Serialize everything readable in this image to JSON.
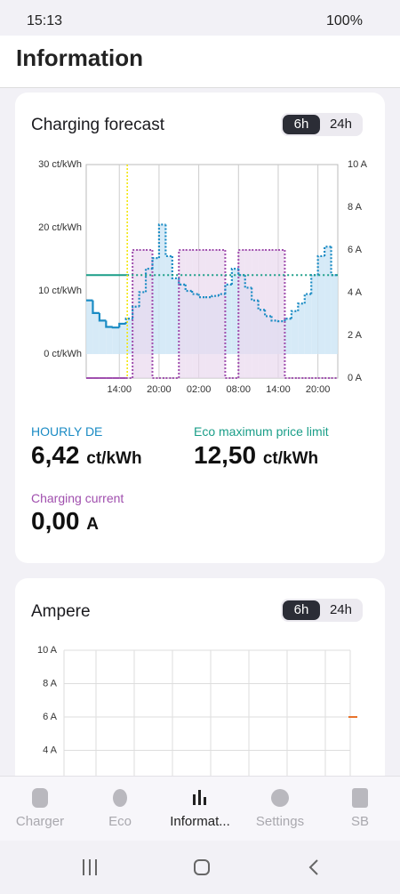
{
  "status_bar": {
    "time": "15:13",
    "battery": "100%"
  },
  "header": {
    "title": "Information"
  },
  "forecast_card": {
    "title": "Charging forecast",
    "toggle": [
      "6h",
      "24h"
    ],
    "chart": {
      "type": "step",
      "xlim": [
        0,
        38
      ],
      "xticks": [
        {
          "value": 5,
          "label": "14:00"
        },
        {
          "value": 11,
          "label": "20:00"
        },
        {
          "value": 17,
          "label": "02:00"
        },
        {
          "value": 23,
          "label": "08:00"
        },
        {
          "value": 29,
          "label": "14:00"
        },
        {
          "value": 35,
          "label": "20:00"
        }
      ],
      "ylim": [
        -3.8,
        30
      ],
      "yticks": [
        {
          "value": 0,
          "label": "0 ct/kWh"
        },
        {
          "value": 10,
          "label": "10 ct/kWh"
        },
        {
          "value": 20,
          "label": "20 ct/kWh"
        },
        {
          "value": 30,
          "label": "30 ct/kWh"
        }
      ],
      "y2lim": [
        0,
        10
      ],
      "y2ticks": [
        {
          "value": 0,
          "label": "0 A"
        },
        {
          "value": 2,
          "label": "2 A"
        },
        {
          "value": 4,
          "label": "4 A"
        },
        {
          "value": 6,
          "label": "6 A"
        },
        {
          "value": 8,
          "label": "8 A"
        },
        {
          "value": 10,
          "label": "10 A"
        }
      ],
      "now": 6.2,
      "price": {
        "color": "#1a8bc4",
        "fill": "#cfe6f6",
        "values": [
          8.5,
          6.5,
          5.3,
          4.3,
          4.2,
          4.8,
          5.6,
          7.5,
          9.8,
          13.5,
          15.2,
          20.5,
          15.5,
          12,
          11,
          10,
          9.5,
          9,
          9,
          9.2,
          9.5,
          11,
          13.5,
          12.5,
          10.5,
          8.5,
          7,
          6,
          5.3,
          5.2,
          5.6,
          6.8,
          8,
          9.5,
          12.5,
          15.5,
          17,
          12.5
        ]
      },
      "limit": {
        "color": "#1a9e88",
        "value": 12.5
      },
      "current": {
        "color": "#a04fae",
        "fill": "#ead8ee",
        "axis": "y2",
        "values": [
          0,
          0,
          0,
          0,
          0,
          0,
          0,
          6,
          6,
          6,
          0,
          0,
          0,
          0,
          6,
          6,
          6,
          6,
          6,
          6,
          6,
          0,
          0,
          6,
          6,
          6,
          6,
          6,
          6,
          6,
          0,
          0,
          0,
          0,
          0,
          0,
          0,
          0
        ]
      }
    },
    "stats": [
      {
        "label": "HOURLY DE",
        "value": "6,42",
        "unit": "ct/kWh"
      },
      {
        "label": "Eco maximum price limit",
        "value": "12,50",
        "unit": "ct/kWh"
      },
      {
        "label": "Charging current",
        "value": "0,00",
        "unit": "A"
      }
    ]
  },
  "ampere_card": {
    "title": "Ampere",
    "toggle": [
      "6h",
      "24h"
    ],
    "chart": {
      "type": "line",
      "ylim": [
        0,
        10
      ],
      "yticks": [
        {
          "value": 4,
          "label": "4 A"
        },
        {
          "value": 6,
          "label": "6 A"
        },
        {
          "value": 8,
          "label": "8 A"
        },
        {
          "value": 10,
          "label": "10 A"
        }
      ],
      "series": [
        {
          "color": "#e8732b",
          "values": [
            6
          ]
        }
      ]
    }
  },
  "nav": [
    "Charger",
    "Eco",
    "Informat...",
    "Settings",
    "SB"
  ]
}
